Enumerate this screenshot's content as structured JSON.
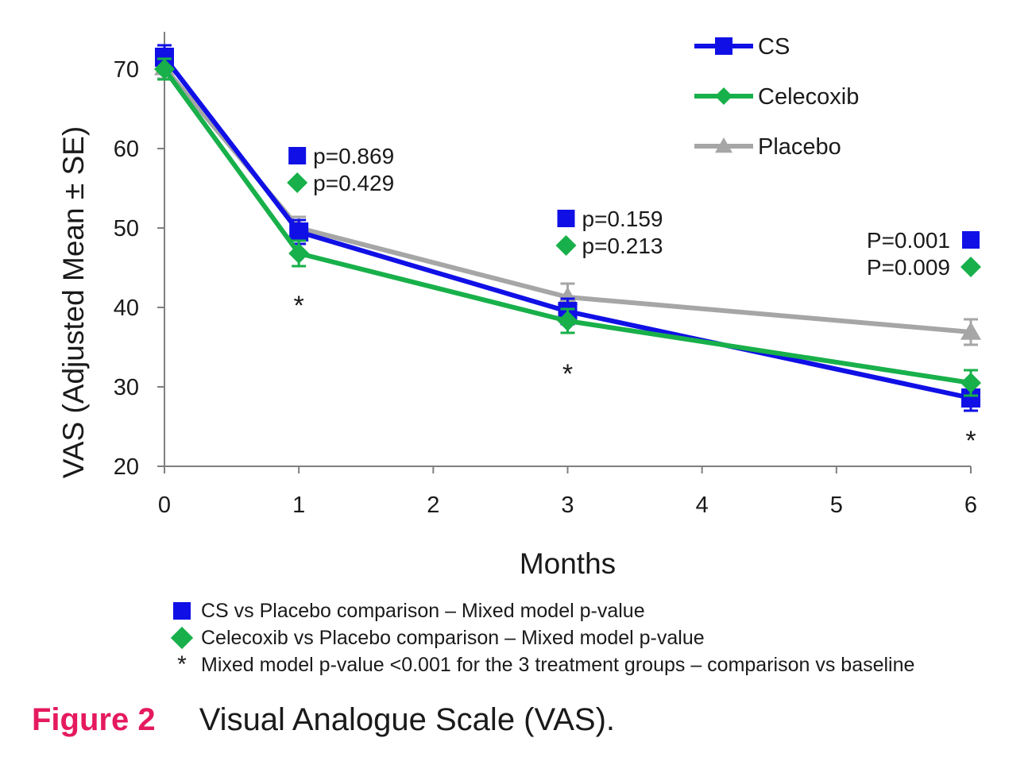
{
  "chart_data": {
    "type": "line",
    "ylabel": "VAS (Adjusted Mean ± SE)",
    "xlabel": "Months",
    "ylim": [
      20,
      72
    ],
    "xlim": [
      0,
      6
    ],
    "yticks": [
      20,
      30,
      40,
      50,
      60,
      70
    ],
    "xticks": [
      0,
      1,
      2,
      3,
      4,
      5,
      6
    ],
    "series": [
      {
        "name": "CS",
        "color": "#1010e6",
        "marker": "square",
        "x": [
          0,
          1,
          3,
          6
        ],
        "y": [
          71.5,
          49.5,
          39.5,
          28.6
        ],
        "se": [
          1.5,
          1.5,
          1.6,
          1.6
        ]
      },
      {
        "name": "Celecoxib",
        "color": "#18b04a",
        "marker": "diamond",
        "x": [
          0,
          1,
          3,
          6
        ],
        "y": [
          70.0,
          46.8,
          38.3,
          30.5
        ],
        "se": [
          1.3,
          1.6,
          1.5,
          1.6
        ]
      },
      {
        "name": "Placebo",
        "color": "#a6a6a6",
        "marker": "triangle",
        "x": [
          0,
          1,
          3,
          6
        ],
        "y": [
          70.2,
          50.0,
          41.3,
          36.9
        ],
        "se": [
          1.4,
          1.4,
          1.7,
          1.6
        ]
      }
    ],
    "pvalues": [
      {
        "x": 1,
        "cs": "p=0.869",
        "celecoxib": "p=0.429",
        "align": "left"
      },
      {
        "x": 3,
        "cs": "p=0.159",
        "celecoxib": "p=0.213",
        "align": "left"
      },
      {
        "x": 6,
        "cs": "P=0.001",
        "celecoxib": "P=0.009",
        "align": "right"
      }
    ],
    "asterisks": [
      1,
      3,
      6
    ],
    "asterisk_symbol": "*"
  },
  "notes": {
    "cs": "CS vs Placebo comparison – Mixed model p-value",
    "celecoxib": "Celecoxib vs Placebo comparison – Mixed model p-value",
    "star_symbol": "*",
    "star": "Mixed model p-value <0.001 for the 3 treatment groups – comparison vs baseline"
  },
  "caption": {
    "label": "Figure 2",
    "text": "Visual Analogue Scale (VAS)."
  }
}
